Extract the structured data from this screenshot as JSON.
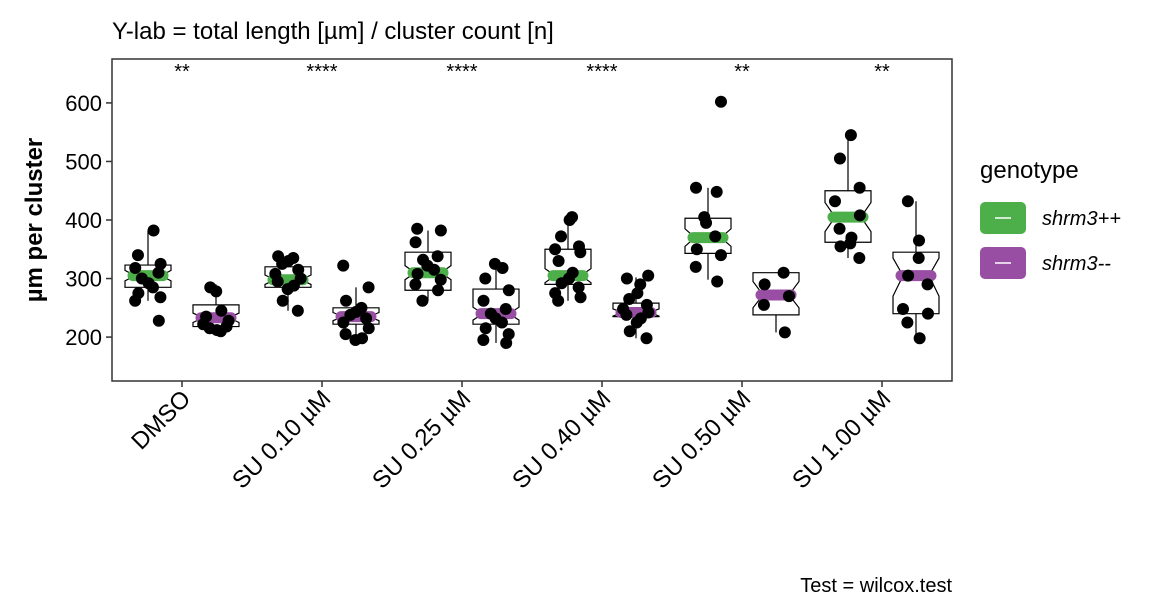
{
  "chart_data": {
    "type": "boxplot",
    "title": "Y-lab = total length [µm] / cluster count [n]",
    "ylabel": "µm per cluster",
    "xlabel": "",
    "ylim": [
      125,
      675
    ],
    "yticks": [
      200,
      300,
      400,
      500,
      600
    ],
    "categories": [
      "DMSO",
      "SU 0.10 µM",
      "SU 0.25 µM",
      "SU 0.40 µM",
      "SU 0.50 µM",
      "SU 1.00 µM"
    ],
    "significance": [
      "**",
      "****",
      "****",
      "****",
      "**",
      "**"
    ],
    "legend_title": "genotype",
    "legend_position": "right",
    "caption": "Test = wilcox.test",
    "grid": false,
    "series": [
      {
        "name": "shrm3++",
        "color": "#4daf4a",
        "boxes": [
          {
            "q1": 285,
            "median": 305,
            "q3": 323,
            "lo": 262,
            "hi": 382,
            "notch_lo": 296,
            "notch_hi": 314
          },
          {
            "q1": 285,
            "median": 298,
            "q3": 320,
            "lo": 245,
            "hi": 338,
            "notch_lo": 290,
            "notch_hi": 306
          },
          {
            "q1": 280,
            "median": 310,
            "q3": 345,
            "lo": 262,
            "hi": 382,
            "notch_lo": 298,
            "notch_hi": 322
          },
          {
            "q1": 290,
            "median": 305,
            "q3": 350,
            "lo": 262,
            "hi": 403,
            "notch_lo": 293,
            "notch_hi": 317
          },
          {
            "q1": 343,
            "median": 370,
            "q3": 403,
            "lo": 298,
            "hi": 455,
            "notch_lo": 355,
            "notch_hi": 385
          },
          {
            "q1": 362,
            "median": 405,
            "q3": 450,
            "lo": 335,
            "hi": 545,
            "notch_lo": 380,
            "notch_hi": 430
          }
        ],
        "points": [
          [
            382,
            340,
            325,
            318,
            310,
            300,
            292,
            285,
            275,
            268,
            262,
            228
          ],
          [
            338,
            335,
            330,
            325,
            315,
            308,
            300,
            295,
            288,
            282,
            262,
            245
          ],
          [
            385,
            382,
            362,
            338,
            332,
            322,
            315,
            308,
            298,
            290,
            280,
            262
          ],
          [
            405,
            400,
            372,
            355,
            350,
            345,
            330,
            310,
            300,
            292,
            285,
            275,
            268,
            262
          ],
          [
            602,
            455,
            448,
            405,
            395,
            372,
            350,
            340,
            320,
            295
          ],
          [
            545,
            505,
            455,
            432,
            408,
            385,
            370,
            360,
            355,
            335
          ]
        ]
      },
      {
        "name": "shrm3--",
        "color": "#984ea3",
        "boxes": [
          {
            "q1": 218,
            "median": 233,
            "q3": 255,
            "lo": 212,
            "hi": 290,
            "notch_lo": 225,
            "notch_hi": 241
          },
          {
            "q1": 222,
            "median": 235,
            "q3": 250,
            "lo": 195,
            "hi": 285,
            "notch_lo": 228,
            "notch_hi": 242
          },
          {
            "q1": 222,
            "median": 240,
            "q3": 282,
            "lo": 190,
            "hi": 325,
            "notch_lo": 229,
            "notch_hi": 251
          },
          {
            "q1": 235,
            "median": 242,
            "q3": 258,
            "lo": 198,
            "hi": 302,
            "notch_lo": 236,
            "notch_hi": 248
          },
          {
            "q1": 238,
            "median": 272,
            "q3": 310,
            "lo": 208,
            "hi": 310,
            "notch_lo": 250,
            "notch_hi": 295
          },
          {
            "q1": 240,
            "median": 305,
            "q3": 345,
            "lo": 198,
            "hi": 432,
            "notch_lo": 270,
            "notch_hi": 335
          }
        ],
        "points": [
          [
            285,
            278,
            245,
            235,
            228,
            222,
            218,
            215,
            212,
            210
          ],
          [
            322,
            285,
            262,
            250,
            243,
            238,
            232,
            225,
            215,
            205,
            198,
            195
          ],
          [
            325,
            318,
            300,
            280,
            262,
            248,
            240,
            232,
            225,
            215,
            205,
            195,
            190
          ],
          [
            305,
            300,
            290,
            275,
            265,
            255,
            248,
            242,
            238,
            232,
            225,
            210,
            198
          ],
          [
            310,
            290,
            270,
            255,
            208
          ],
          [
            432,
            365,
            335,
            305,
            290,
            248,
            240,
            225,
            198
          ]
        ]
      }
    ]
  }
}
